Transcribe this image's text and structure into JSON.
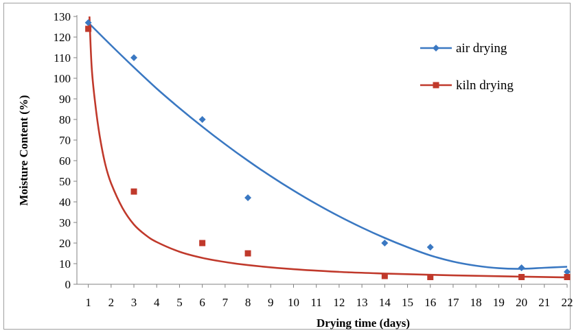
{
  "chart_data": {
    "type": "scatter",
    "title": "",
    "xlabel": "Drying time (days)",
    "ylabel": "Moisture Content (%)",
    "xlim": [
      0.5,
      22
    ],
    "ylim": [
      0,
      130
    ],
    "x_ticks": [
      1,
      2,
      3,
      4,
      5,
      6,
      7,
      8,
      9,
      10,
      11,
      12,
      13,
      14,
      15,
      16,
      17,
      18,
      19,
      20,
      21,
      22
    ],
    "y_ticks": [
      0,
      10,
      20,
      30,
      40,
      50,
      60,
      70,
      80,
      90,
      100,
      110,
      120,
      130
    ],
    "grid": false,
    "legend_position": "top-right",
    "series": [
      {
        "name": "air drying",
        "color": "#3a78c2",
        "marker": "diamond",
        "x": [
          1,
          3,
          6,
          8,
          14,
          16,
          20,
          22
        ],
        "y": [
          127,
          110,
          80,
          42,
          20,
          18,
          8,
          6
        ],
        "trendline": {
          "type": "polynomial",
          "x": [
            1,
            2,
            3,
            4,
            5,
            6,
            7,
            8,
            9,
            10,
            11,
            12,
            13,
            14,
            15,
            16,
            17,
            18,
            19,
            20,
            21,
            22
          ],
          "y": [
            127,
            116,
            105.3,
            95,
            85.5,
            76.5,
            68,
            60,
            52.5,
            45.5,
            39,
            33,
            27.5,
            22.5,
            18,
            14,
            11,
            9,
            7.8,
            7.5,
            8,
            8.5
          ]
        }
      },
      {
        "name": "kiln drying",
        "color": "#c0392b",
        "marker": "square",
        "x": [
          1,
          3,
          6,
          8,
          14,
          16,
          20,
          22
        ],
        "y": [
          124,
          45,
          20,
          15,
          4,
          3.5,
          3.5,
          3.5
        ],
        "trendline": {
          "type": "power",
          "x": [
            1.05,
            1.15,
            1.3,
            1.5,
            1.75,
            2,
            2.5,
            3,
            3.5,
            4,
            5,
            6,
            7,
            8,
            10,
            12,
            14,
            16,
            18,
            20,
            22
          ],
          "y": [
            130,
            105,
            88,
            72,
            58,
            49,
            37,
            29,
            24,
            20.5,
            15.8,
            12.8,
            10.8,
            9.3,
            7.3,
            6,
            5.2,
            4.6,
            4.1,
            3.7,
            3.3
          ]
        }
      }
    ]
  }
}
